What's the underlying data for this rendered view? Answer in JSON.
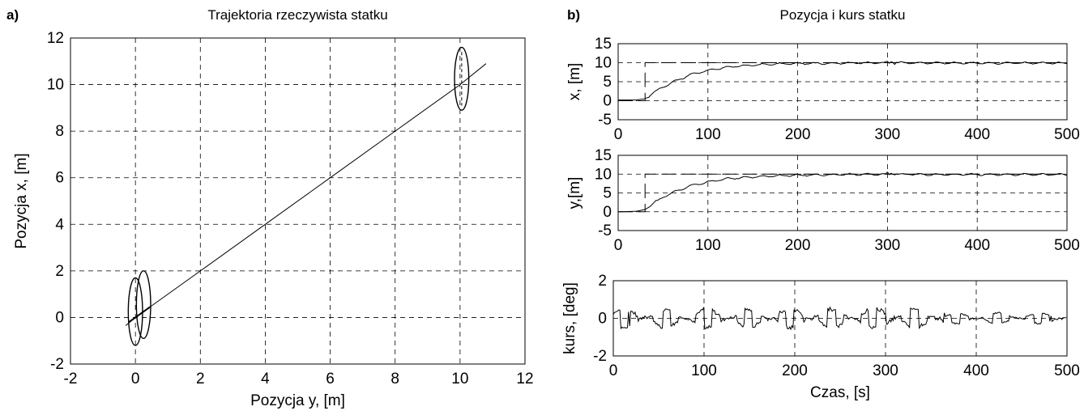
{
  "chart_data": [
    {
      "panel_label": "a)",
      "type": "line",
      "title": "Trajektoria rzeczywista statku",
      "xlabel": "Pozycja y, [m]",
      "ylabel": "Pozycja x, [m]",
      "xlim": [
        -2,
        12
      ],
      "ylim": [
        -2,
        12
      ],
      "xticks": [
        "-2",
        "0",
        "2",
        "4",
        "6",
        "8",
        "10",
        "12"
      ],
      "yticks": [
        "-2",
        "0",
        "2",
        "4",
        "6",
        "8",
        "10",
        "12"
      ],
      "grid": true,
      "series": [
        {
          "x": [
            -0.3,
            0.0,
            0.3,
            0.5,
            2,
            4,
            6,
            8,
            10,
            10.8
          ],
          "y": [
            -0.35,
            0.0,
            0.3,
            0.5,
            2.0,
            4.0,
            6.0,
            8.0,
            10.0,
            10.9
          ]
        }
      ],
      "ellipses": [
        {
          "cx": 0.0,
          "cy": 0.25,
          "rx": 0.22,
          "ry": 1.45
        },
        {
          "cx": 0.25,
          "cy": 0.55,
          "rx": 0.22,
          "ry": 1.45
        },
        {
          "cx": 10.05,
          "cy": 10.25,
          "rx": 0.22,
          "ry": 1.35
        }
      ]
    },
    {
      "panel_label": "b)",
      "type": "line",
      "title": "Pozycja i kurs statku",
      "xlabel": "",
      "ylabel": "x, [m]",
      "xlim": [
        0,
        500
      ],
      "ylim": [
        -5,
        15
      ],
      "xticks": [
        "0",
        "100",
        "200",
        "300",
        "400",
        "500"
      ],
      "yticks": [
        "15",
        "10",
        "5",
        "0",
        "-5"
      ],
      "grid": true,
      "series": [
        {
          "x": [
            0,
            20,
            30,
            40,
            50,
            60,
            80,
            100,
            120,
            140,
            160,
            180,
            200,
            250,
            300,
            350,
            400,
            450,
            500
          ],
          "y": [
            0.2,
            0.2,
            0.5,
            2.2,
            3.6,
            4.8,
            6.8,
            8.0,
            8.8,
            9.2,
            9.5,
            9.7,
            9.8,
            9.9,
            10.0,
            9.9,
            9.9,
            9.9,
            9.9
          ]
        },
        {
          "x": [
            0,
            30,
            30,
            500
          ],
          "y": [
            0,
            0,
            10,
            10
          ],
          "style": "reference"
        }
      ]
    },
    {
      "type": "line",
      "title": "",
      "xlabel": "",
      "ylabel": "y,[m]",
      "xlim": [
        0,
        500
      ],
      "ylim": [
        -5,
        15
      ],
      "xticks": [
        "0",
        "100",
        "200",
        "300",
        "400",
        "500"
      ],
      "yticks": [
        "15",
        "10",
        "5",
        "0",
        "-5"
      ],
      "grid": true,
      "series": [
        {
          "x": [
            0,
            20,
            30,
            40,
            50,
            60,
            80,
            100,
            120,
            140,
            160,
            180,
            200,
            250,
            300,
            350,
            400,
            450,
            500
          ],
          "y": [
            0.0,
            0.1,
            0.6,
            2.4,
            3.8,
            5.0,
            6.9,
            7.9,
            8.7,
            9.1,
            9.4,
            9.6,
            9.7,
            9.9,
            10.0,
            9.9,
            9.9,
            9.9,
            9.9
          ]
        },
        {
          "x": [
            0,
            30,
            30,
            500
          ],
          "y": [
            0,
            0,
            10,
            10
          ],
          "style": "reference"
        }
      ]
    },
    {
      "type": "line",
      "title": "",
      "xlabel": "Czas, [s]",
      "ylabel": "kurs, [deg]",
      "xlim": [
        0,
        500
      ],
      "ylim": [
        -2,
        2
      ],
      "xticks": [
        "0",
        "100",
        "200",
        "300",
        "400",
        "500"
      ],
      "yticks": [
        "2",
        "0",
        "-2"
      ],
      "grid": true,
      "series": [
        {
          "x": [
            0,
            500
          ],
          "y": [
            0,
            0
          ],
          "note": "oscillating signal, amplitude approx ±0.6 deg, peak ~0.9 near t=305"
        }
      ]
    }
  ]
}
